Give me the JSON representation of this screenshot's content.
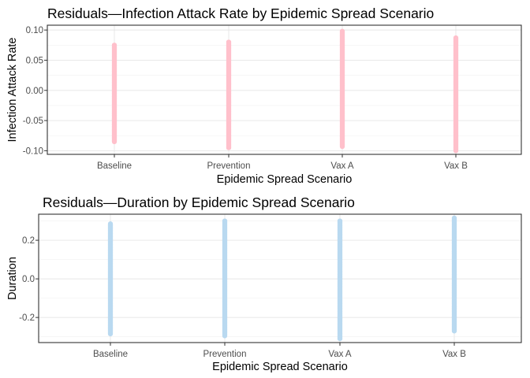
{
  "chart_data": [
    {
      "type": "scatter",
      "title": "Residuals—Infection Attack Rate by Epidemic Spread Scenario",
      "xlabel": "Epidemic Spread Scenario",
      "ylabel": "Infection Attack Rate",
      "categories": [
        "Baseline",
        "Prevention",
        "Vax A",
        "Vax B"
      ],
      "yticks": [
        "-0.10",
        "-0.05",
        "0.00",
        "0.05",
        "0.10"
      ],
      "ylim": [
        -0.106,
        0.108
      ],
      "grid": true,
      "color": "#FFC0CB",
      "series": [
        {
          "category": "Baseline",
          "min": -0.085,
          "max": 0.075
        },
        {
          "category": "Prevention",
          "min": -0.095,
          "max": 0.08
        },
        {
          "category": "Vax A",
          "min": -0.093,
          "max": 0.098
        },
        {
          "category": "Vax B",
          "min": -0.1,
          "max": 0.087
        }
      ]
    },
    {
      "type": "scatter",
      "title": "Residuals—Duration by Epidemic Spread Scenario",
      "xlabel": "Epidemic Spread Scenario",
      "ylabel": "Duration",
      "categories": [
        "Baseline",
        "Prevention",
        "Vax A",
        "Vax B"
      ],
      "yticks": [
        "-0.2",
        "0.0",
        "0.2"
      ],
      "ylim": [
        -0.33,
        0.335
      ],
      "grid": true,
      "color": "#B9D9F0",
      "series": [
        {
          "category": "Baseline",
          "min": -0.285,
          "max": 0.285
        },
        {
          "category": "Prevention",
          "min": -0.295,
          "max": 0.3
        },
        {
          "category": "Vax A",
          "min": -0.31,
          "max": 0.3
        },
        {
          "category": "Vax B",
          "min": -0.27,
          "max": 0.315
        }
      ]
    }
  ]
}
